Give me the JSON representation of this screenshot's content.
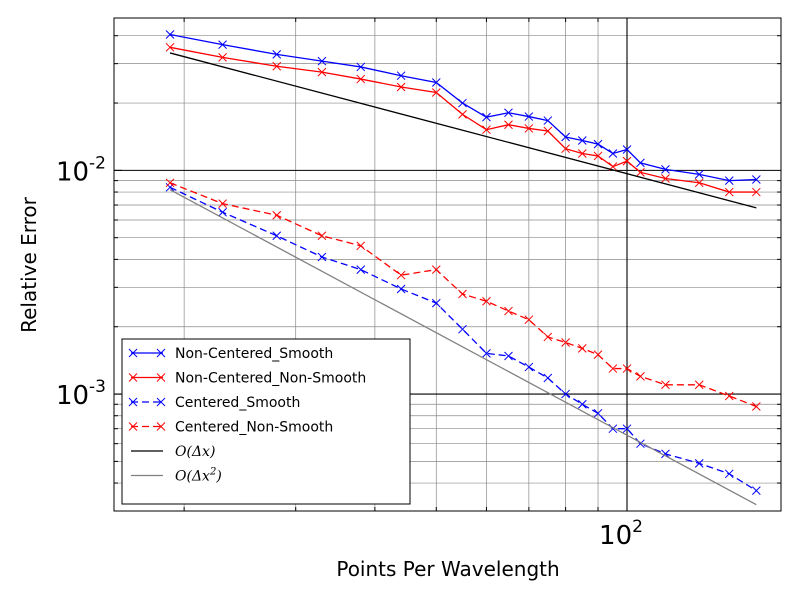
{
  "chart_data": {
    "type": "line",
    "xscale": "log",
    "yscale": "log",
    "xlim": [
      15.5,
      175
    ],
    "ylim": [
      0.0003,
      0.048
    ],
    "xlabel": "Points Per Wavelength",
    "ylabel": "Relative Error",
    "x_major_ticks": [
      {
        "value": 100,
        "base": "10",
        "exp": "2"
      }
    ],
    "y_major_ticks": [
      {
        "value": 0.01,
        "base": "10",
        "exp": "-2"
      },
      {
        "value": 0.001,
        "base": "10",
        "exp": "-3"
      }
    ],
    "legend_position": "lower-left",
    "series": [
      {
        "name": "Non-Centered_Smooth",
        "color": "#0000ff",
        "linestyle": "solid",
        "marker": "x",
        "x": [
          19,
          23,
          28,
          33,
          38,
          44,
          50,
          55,
          60,
          65,
          70,
          75,
          80,
          85,
          90,
          95,
          100,
          105,
          115,
          130,
          145,
          160
        ],
        "y": [
          0.0405,
          0.0365,
          0.033,
          0.0308,
          0.029,
          0.0265,
          0.0247,
          0.02,
          0.0173,
          0.0181,
          0.0174,
          0.0167,
          0.0141,
          0.0136,
          0.0131,
          0.0119,
          0.0124,
          0.0108,
          0.0101,
          0.0096,
          0.009,
          0.0091
        ]
      },
      {
        "name": "Non-Centered_Non-Smooth",
        "color": "#ff0000",
        "linestyle": "solid",
        "marker": "x",
        "x": [
          19,
          23,
          28,
          33,
          38,
          44,
          50,
          55,
          60,
          65,
          70,
          75,
          80,
          85,
          90,
          95,
          100,
          105,
          115,
          130,
          145,
          160
        ],
        "y": [
          0.0355,
          0.032,
          0.0292,
          0.0275,
          0.0256,
          0.0236,
          0.0223,
          0.0178,
          0.0152,
          0.016,
          0.0154,
          0.015,
          0.0125,
          0.0119,
          0.0116,
          0.0104,
          0.011,
          0.0098,
          0.0092,
          0.0088,
          0.008,
          0.008
        ]
      },
      {
        "name": "Centered_Smooth",
        "color": "#0000ff",
        "linestyle": "dashed",
        "marker": "x",
        "x": [
          19,
          23,
          28,
          33,
          38,
          44,
          50,
          55,
          60,
          65,
          70,
          75,
          80,
          85,
          90,
          95,
          100,
          105,
          115,
          130,
          145,
          160
        ],
        "y": [
          0.0084,
          0.0065,
          0.0051,
          0.0041,
          0.0036,
          0.00295,
          0.00255,
          0.00195,
          0.00152,
          0.00148,
          0.00132,
          0.00118,
          0.001,
          0.0009,
          0.00082,
          0.0007,
          0.0007,
          0.0006,
          0.00054,
          0.00049,
          0.00044,
          0.00037
        ]
      },
      {
        "name": "Centered_Non-Smooth",
        "color": "#ff0000",
        "linestyle": "dashed",
        "marker": "x",
        "x": [
          19,
          23,
          28,
          33,
          38,
          44,
          50,
          55,
          60,
          65,
          70,
          75,
          80,
          85,
          90,
          95,
          100,
          105,
          115,
          130,
          145,
          160
        ],
        "y": [
          0.0088,
          0.0071,
          0.0063,
          0.0051,
          0.0046,
          0.0034,
          0.0036,
          0.0028,
          0.0026,
          0.00235,
          0.00215,
          0.0018,
          0.0017,
          0.0016,
          0.0015,
          0.0013,
          0.0013,
          0.0012,
          0.0011,
          0.0011,
          0.00098,
          0.00088
        ]
      },
      {
        "name": "O(Δx)",
        "label_main": "O(Δx)",
        "color": "#000000",
        "linestyle": "solid",
        "marker": "none",
        "x": [
          19,
          160
        ],
        "y": [
          0.0335,
          0.0068
        ]
      },
      {
        "name": "O(Δx²)",
        "label_main": "O(Δx",
        "label_sup": "2",
        "label_close": ")",
        "color": "#808080",
        "linestyle": "solid",
        "marker": "none",
        "x": [
          19,
          160
        ],
        "y": [
          0.0082,
          0.00032
        ]
      }
    ]
  }
}
